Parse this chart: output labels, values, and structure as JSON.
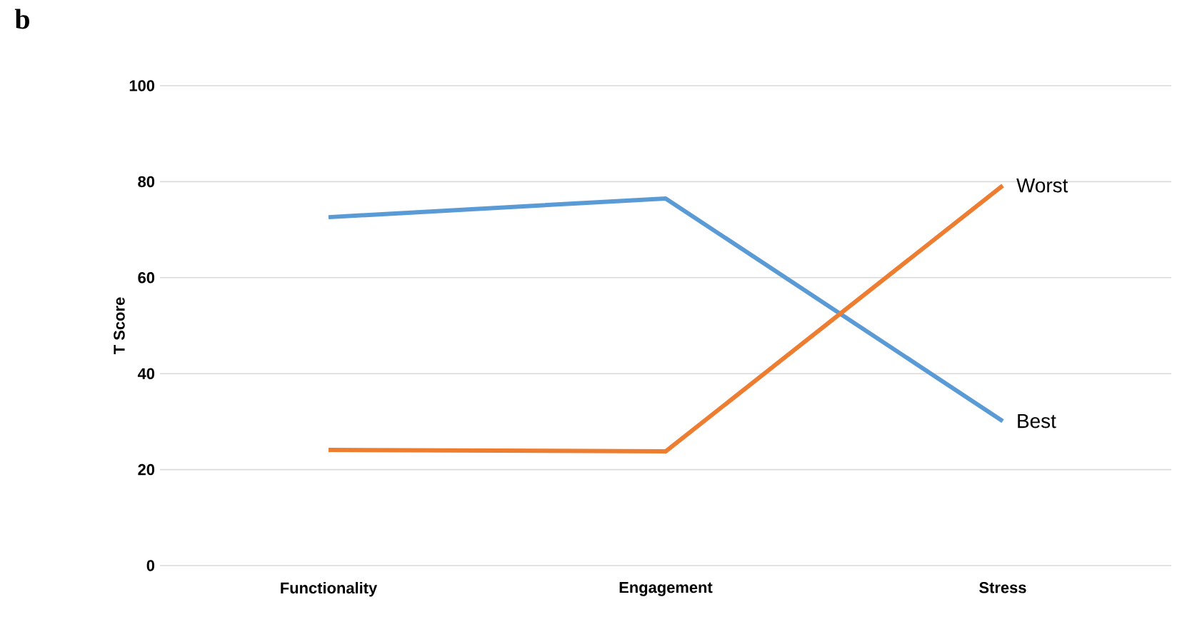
{
  "chart_data": {
    "type": "line",
    "title": "b",
    "ylabel": "T Score",
    "categories": [
      "Functionality",
      "Engagement",
      "Stress"
    ],
    "series": [
      {
        "name": "Best",
        "color": "#5b9bd5",
        "values": [
          72.6,
          76.5,
          30.1
        ]
      },
      {
        "name": "Worst",
        "color": "#ed7d31",
        "values": [
          24.1,
          23.8,
          79.2
        ]
      }
    ],
    "ylim": [
      0,
      100
    ],
    "yticks": [
      0,
      20,
      40,
      60,
      80,
      100
    ],
    "grid": "y",
    "marker": "none",
    "line_style": "solid"
  }
}
